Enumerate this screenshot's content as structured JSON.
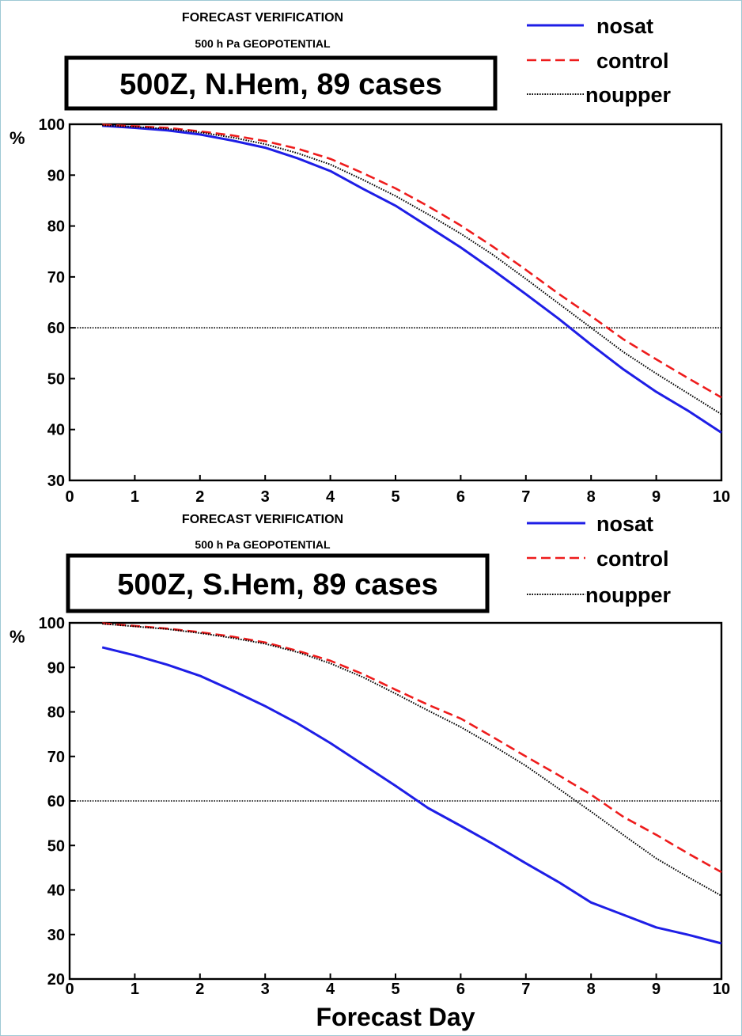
{
  "chart_data": [
    {
      "type": "line",
      "title": "FORECAST VERIFICATION",
      "subtitle": "500 h Pa GEOPOTENTIAL",
      "box_label": "500Z, N.Hem, 89 cases",
      "ylabel": "%",
      "xlabel": "",
      "xlim": [
        0,
        10
      ],
      "ylim": [
        30,
        100
      ],
      "xticks": [
        0,
        1,
        2,
        3,
        4,
        5,
        6,
        7,
        8,
        9,
        10
      ],
      "yticks": [
        30,
        40,
        50,
        60,
        70,
        80,
        90,
        100
      ],
      "reference_line": 60,
      "legend_position": "top-right",
      "x": [
        0.5,
        1,
        1.5,
        2,
        2.5,
        3,
        3.5,
        4,
        4.5,
        5,
        5.5,
        6,
        6.5,
        7,
        7.5,
        8,
        8.5,
        9,
        9.5,
        10
      ],
      "series": [
        {
          "name": "nosat",
          "color": "#1e1ee6",
          "style": "solid",
          "values": [
            99.7,
            99.3,
            98.8,
            98.0,
            96.8,
            95.4,
            93.3,
            90.8,
            87.3,
            84.0,
            79.9,
            75.8,
            71.3,
            66.6,
            61.8,
            56.7,
            51.8,
            47.4,
            43.6,
            39.4
          ]
        },
        {
          "name": "control",
          "color": "#ee1c1c",
          "style": "dashed",
          "values": [
            99.9,
            99.6,
            99.3,
            98.6,
            97.8,
            96.7,
            95.2,
            93.2,
            90.4,
            87.4,
            83.9,
            80.1,
            75.9,
            71.4,
            66.7,
            62.3,
            57.7,
            53.8,
            50.0,
            46.3
          ]
        },
        {
          "name": "noupper",
          "color": "#000000",
          "style": "dotted",
          "values": [
            99.8,
            99.5,
            99.1,
            98.4,
            97.4,
            96.1,
            94.3,
            92.1,
            89.1,
            85.9,
            82.3,
            78.5,
            74.3,
            69.6,
            64.8,
            60.0,
            55.2,
            51.0,
            47.0,
            43.0
          ]
        }
      ]
    },
    {
      "type": "line",
      "title": "FORECAST VERIFICATION",
      "subtitle": "500 h Pa GEOPOTENTIAL",
      "box_label": "500Z, S.Hem, 89 cases",
      "ylabel": "%",
      "xlabel": "Forecast Day",
      "xlim": [
        0,
        10
      ],
      "ylim": [
        20,
        100
      ],
      "xticks": [
        0,
        1,
        2,
        3,
        4,
        5,
        6,
        7,
        8,
        9,
        10
      ],
      "yticks": [
        20,
        30,
        40,
        50,
        60,
        70,
        80,
        90,
        100
      ],
      "reference_line": 60,
      "legend_position": "top-right",
      "x": [
        0.5,
        1,
        1.5,
        2,
        2.5,
        3,
        3.5,
        4,
        4.5,
        5,
        5.5,
        6,
        6.5,
        7,
        7.5,
        8,
        8.5,
        9,
        9.5,
        10
      ],
      "series": [
        {
          "name": "nosat",
          "color": "#1e1ee6",
          "style": "solid",
          "values": [
            94.5,
            92.7,
            90.6,
            88.1,
            84.8,
            81.3,
            77.4,
            73.0,
            68.2,
            63.4,
            58.4,
            54.4,
            50.3,
            46.0,
            41.8,
            37.2,
            34.4,
            31.6,
            29.9,
            28.0
          ]
        },
        {
          "name": "control",
          "color": "#ee1c1c",
          "style": "dashed",
          "values": [
            99.9,
            99.3,
            98.7,
            97.9,
            96.9,
            95.6,
            93.7,
            91.5,
            88.5,
            85.0,
            81.6,
            78.5,
            74.3,
            70.0,
            65.8,
            61.4,
            56.4,
            52.4,
            48.1,
            44.0
          ]
        },
        {
          "name": "noupper",
          "color": "#000000",
          "style": "dotted",
          "values": [
            99.8,
            99.2,
            98.6,
            97.7,
            96.6,
            95.3,
            93.4,
            90.9,
            87.8,
            84.1,
            80.3,
            76.6,
            72.4,
            67.9,
            62.8,
            57.6,
            52.3,
            47.1,
            42.8,
            38.7
          ]
        }
      ]
    }
  ]
}
